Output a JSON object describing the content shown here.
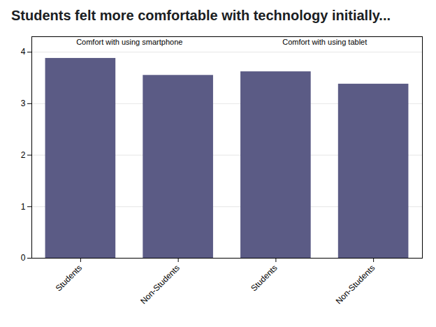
{
  "chart_data": {
    "type": "bar",
    "title": "Students felt more comfortable with technology initially...",
    "categories": [
      "Students",
      "Non-Students",
      "Students",
      "Non-Students"
    ],
    "values": [
      3.88,
      3.55,
      3.62,
      3.38
    ],
    "color": "#5b5b85",
    "ylim": [
      0,
      4.3
    ],
    "yticks": [
      0,
      1,
      2,
      3,
      4
    ],
    "grid": true,
    "annotations": [
      {
        "text": "Comfort with using smartphone"
      },
      {
        "text": "Comfort with using tablet"
      }
    ]
  }
}
